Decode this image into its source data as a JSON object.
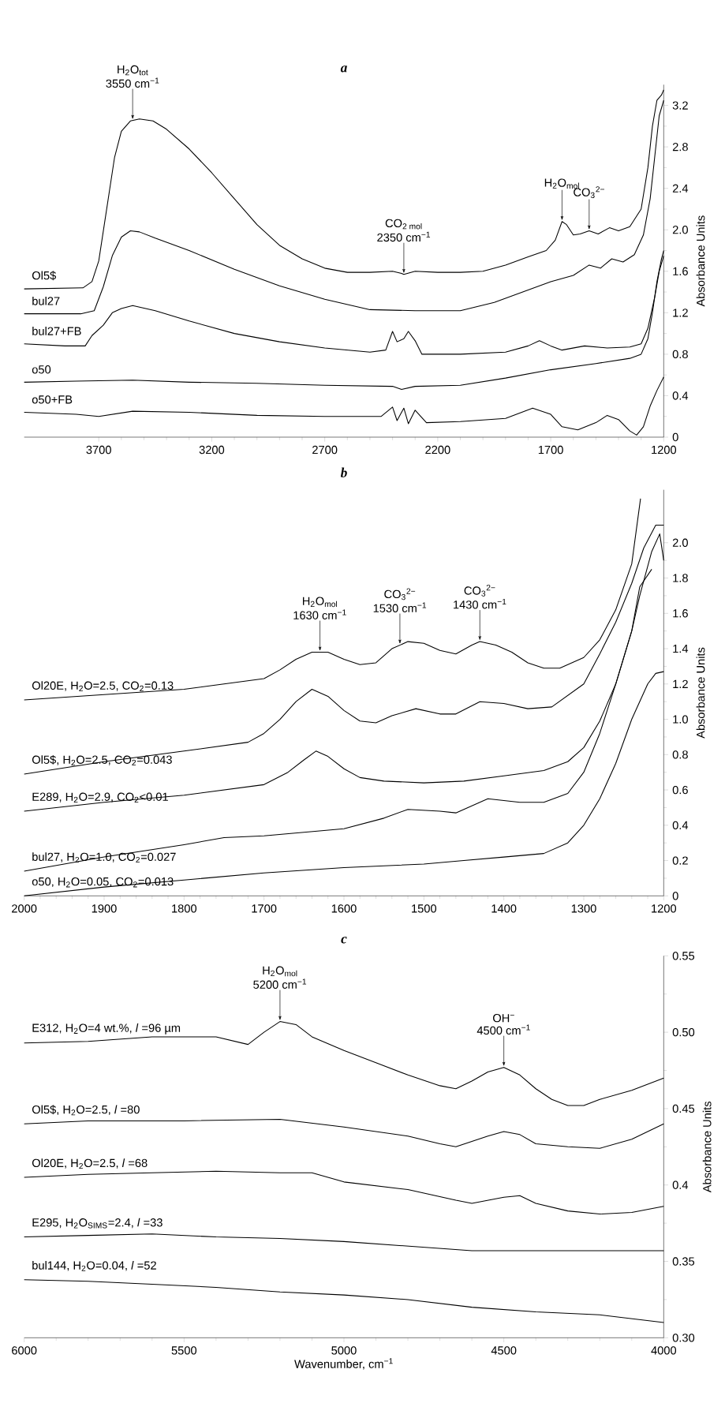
{
  "chart_data": [
    {
      "type": "line",
      "title": "a",
      "ylabel": "Absorbance Units",
      "xlim": [
        4030,
        1200
      ],
      "ylim": [
        0,
        3.4
      ],
      "xticks": [
        3700,
        3200,
        2700,
        2200,
        1700,
        1200
      ],
      "yticks": [
        0,
        0.4,
        0.8,
        1.2,
        1.6,
        {
          "value": 2.0,
          "label": "2.0"
        },
        2.4,
        2.8,
        3.2
      ],
      "series": [
        {
          "name": "Ol5$",
          "color": "#000000",
          "x": [
            4030,
            3770,
            3730,
            3700,
            3665,
            3630,
            3600,
            3560,
            3520,
            3460,
            3400,
            3300,
            3200,
            3100,
            3000,
            2900,
            2800,
            2700,
            2600,
            2500,
            2400,
            2360,
            2350,
            2300,
            2200,
            2100,
            2000,
            1900,
            1800,
            1720,
            1680,
            1650,
            1630,
            1600,
            1570,
            1530,
            1490,
            1440,
            1400,
            1350,
            1300,
            1270,
            1250,
            1230,
            1210,
            1200
          ],
          "values": [
            1.43,
            1.44,
            1.5,
            1.7,
            2.2,
            2.7,
            2.95,
            3.05,
            3.07,
            3.05,
            2.97,
            2.78,
            2.55,
            2.3,
            2.05,
            1.85,
            1.72,
            1.63,
            1.59,
            1.59,
            1.6,
            1.58,
            1.57,
            1.6,
            1.59,
            1.59,
            1.6,
            1.66,
            1.74,
            1.8,
            1.9,
            2.08,
            2.05,
            1.95,
            1.96,
            1.99,
            1.96,
            2.02,
            1.99,
            2.03,
            2.2,
            2.6,
            3.0,
            3.25,
            3.3,
            3.35
          ]
        },
        {
          "name": "bul27",
          "color": "#000000",
          "x": [
            4030,
            3780,
            3720,
            3680,
            3640,
            3600,
            3560,
            3520,
            3450,
            3300,
            3100,
            2900,
            2700,
            2500,
            2300,
            2100,
            1950,
            1800,
            1700,
            1600,
            1530,
            1480,
            1430,
            1380,
            1330,
            1290,
            1260,
            1240,
            1220,
            1200
          ],
          "values": [
            1.19,
            1.19,
            1.22,
            1.45,
            1.75,
            1.93,
            1.99,
            1.98,
            1.92,
            1.8,
            1.62,
            1.46,
            1.33,
            1.23,
            1.22,
            1.22,
            1.3,
            1.42,
            1.5,
            1.56,
            1.66,
            1.63,
            1.72,
            1.69,
            1.76,
            1.95,
            2.3,
            2.7,
            3.1,
            3.25
          ]
        },
        {
          "name": "bul27+FB",
          "color": "#000000",
          "x": [
            4030,
            3850,
            3760,
            3730,
            3680,
            3640,
            3600,
            3550,
            3450,
            3300,
            3100,
            2900,
            2700,
            2500,
            2430,
            2400,
            2380,
            2350,
            2330,
            2300,
            2270,
            2100,
            1900,
            1800,
            1750,
            1700,
            1650,
            1550,
            1450,
            1350,
            1300,
            1270,
            1240,
            1220,
            1200
          ],
          "values": [
            0.9,
            0.88,
            0.88,
            0.98,
            1.08,
            1.2,
            1.24,
            1.27,
            1.22,
            1.12,
            1.0,
            0.92,
            0.86,
            0.82,
            0.84,
            1.02,
            0.92,
            0.95,
            1.02,
            0.93,
            0.8,
            0.8,
            0.82,
            0.88,
            0.93,
            0.88,
            0.84,
            0.88,
            0.86,
            0.87,
            0.9,
            1.05,
            1.35,
            1.6,
            1.75
          ]
        },
        {
          "name": "o50",
          "color": "#000000",
          "x": [
            4030,
            3800,
            3550,
            3300,
            3000,
            2700,
            2400,
            2360,
            2300,
            2100,
            1900,
            1700,
            1500,
            1350,
            1300,
            1270,
            1250,
            1230,
            1210,
            1200
          ],
          "values": [
            0.53,
            0.54,
            0.55,
            0.53,
            0.52,
            0.5,
            0.49,
            0.46,
            0.49,
            0.5,
            0.57,
            0.65,
            0.71,
            0.76,
            0.8,
            0.95,
            1.2,
            1.5,
            1.72,
            1.8
          ]
        },
        {
          "name": "o50+FB",
          "color": "#000000",
          "x": [
            4030,
            3800,
            3700,
            3550,
            3300,
            3000,
            2700,
            2450,
            2400,
            2380,
            2350,
            2330,
            2300,
            2250,
            2100,
            1900,
            1780,
            1700,
            1650,
            1580,
            1500,
            1450,
            1400,
            1350,
            1320,
            1290,
            1260,
            1230,
            1200
          ],
          "values": [
            0.24,
            0.22,
            0.2,
            0.25,
            0.24,
            0.21,
            0.2,
            0.2,
            0.29,
            0.16,
            0.28,
            0.13,
            0.26,
            0.14,
            0.15,
            0.18,
            0.28,
            0.22,
            0.1,
            0.07,
            0.14,
            0.21,
            0.17,
            0.06,
            0.02,
            0.1,
            0.3,
            0.45,
            0.58
          ]
        }
      ],
      "annotations": [
        {
          "text": "3550 cm$^{−1}$",
          "x": 3550,
          "y": 3.055
        },
        "H$_{2}$O$_{tot}$",
        {
          "text": "2350 cm$^{−1}$",
          "x": 2350,
          "y": 1.57
        },
        "CO$_{2 mol}$",
        {
          "text": "H$_{2}$O$_{mol}$",
          "x": 1650,
          "y": 2.08
        },
        {
          "text": "CO$_{3}$$^{2−}$",
          "x": 1530,
          "y": 1.99
        }
      ]
    },
    {
      "type": "line",
      "title": "b",
      "ylabel": "Absorbance Units",
      "xlim": [
        2000,
        1200
      ],
      "ylim": [
        0,
        2.3
      ],
      "xticks": [
        2000,
        1900,
        1800,
        1700,
        1600,
        1500,
        1400,
        1300,
        1200
      ],
      "yticks": [
        0,
        0.2,
        0.4,
        0.6,
        0.8,
        {
          "value": 1.0,
          "label": "1.0"
        },
        1.2,
        1.4,
        1.6,
        1.8,
        {
          "value": 2.0,
          "label": "2.0"
        }
      ],
      "series": [
        {
          "name": "Ol20E, H$_{2}$O=2.5, CO$_{2}$=0.13",
          "color": "#000000",
          "x": [
            2000,
            1900,
            1800,
            1750,
            1700,
            1680,
            1660,
            1640,
            1620,
            1600,
            1580,
            1560,
            1540,
            1520,
            1500,
            1480,
            1460,
            1440,
            1430,
            1410,
            1390,
            1370,
            1350,
            1330,
            1300,
            1280,
            1260,
            1240,
            1229
          ],
          "values": [
            1.11,
            1.14,
            1.17,
            1.2,
            1.23,
            1.28,
            1.34,
            1.38,
            1.38,
            1.34,
            1.31,
            1.32,
            1.4,
            1.44,
            1.43,
            1.39,
            1.37,
            1.42,
            1.44,
            1.42,
            1.38,
            1.32,
            1.29,
            1.29,
            1.35,
            1.45,
            1.62,
            1.88,
            2.25
          ]
        },
        {
          "name": "Ol5$, H$_{2}$O=2.5, CO$_{2}$=0.043",
          "color": "#000000",
          "x": [
            2000,
            1900,
            1800,
            1720,
            1700,
            1680,
            1660,
            1640,
            1620,
            1600,
            1580,
            1560,
            1540,
            1510,
            1480,
            1460,
            1430,
            1400,
            1370,
            1340,
            1300,
            1280,
            1260,
            1240,
            1225,
            1210,
            1200
          ],
          "values": [
            0.69,
            0.76,
            0.82,
            0.87,
            0.92,
            1.0,
            1.1,
            1.17,
            1.13,
            1.05,
            0.99,
            0.98,
            1.02,
            1.06,
            1.03,
            1.03,
            1.1,
            1.09,
            1.06,
            1.07,
            1.2,
            1.37,
            1.55,
            1.77,
            1.97,
            2.1,
            2.1
          ]
        },
        {
          "name": "E289, H$_{2}$O=2.9, CO$_{2}$<0.01",
          "color": "#000000",
          "x": [
            2000,
            1900,
            1800,
            1700,
            1670,
            1650,
            1635,
            1620,
            1600,
            1580,
            1550,
            1500,
            1450,
            1400,
            1350,
            1320,
            1300,
            1280,
            1260,
            1240,
            1230,
            1215,
            1205,
            1200
          ],
          "values": [
            0.48,
            0.53,
            0.57,
            0.63,
            0.7,
            0.77,
            0.82,
            0.79,
            0.72,
            0.67,
            0.65,
            0.64,
            0.65,
            0.68,
            0.71,
            0.76,
            0.84,
            0.99,
            1.2,
            1.5,
            1.7,
            1.95,
            2.05,
            1.9
          ]
        },
        {
          "name": "bul27, H$_{2}$O=1.0, CO$_{2}$=0.027",
          "color": "#000000",
          "x": [
            2000,
            1900,
            1800,
            1750,
            1700,
            1600,
            1550,
            1520,
            1480,
            1460,
            1420,
            1380,
            1350,
            1320,
            1300,
            1280,
            1260,
            1240,
            1230,
            1215
          ],
          "values": [
            0.14,
            0.22,
            0.29,
            0.33,
            0.34,
            0.38,
            0.44,
            0.49,
            0.48,
            0.47,
            0.55,
            0.53,
            0.53,
            0.58,
            0.7,
            0.92,
            1.2,
            1.5,
            1.75,
            1.85
          ]
        },
        {
          "name": "o50, H$_{2}$O=0.05, CO$_{2}$=0.013",
          "color": "#000000",
          "x": [
            2000,
            1900,
            1800,
            1700,
            1600,
            1500,
            1450,
            1400,
            1350,
            1320,
            1300,
            1280,
            1260,
            1240,
            1220,
            1210,
            1200
          ],
          "values": [
            0.0,
            0.05,
            0.09,
            0.13,
            0.16,
            0.18,
            0.2,
            0.22,
            0.24,
            0.3,
            0.4,
            0.55,
            0.75,
            1.0,
            1.2,
            1.26,
            1.27
          ]
        }
      ],
      "annotations": [
        {
          "text": "1630 cm$^{−1}$",
          "x": 1630,
          "y": 1.38
        },
        "H$_{2}$O$_{mol}$",
        {
          "text": "1530 cm$^{−1}$",
          "x": 1530,
          "y": 1.42
        },
        "CO$_{3}$$^{2−}$",
        {
          "text": "1430 cm$^{−1}$",
          "x": 1430,
          "y": 1.44
        },
        "CO$_{3}$$^{2−}$"
      ]
    },
    {
      "type": "line",
      "title": "c",
      "xlabel": "Wavenumber, cm$^{−1}$",
      "ylabel": "Absorbance Units",
      "xlim": [
        6000,
        4000
      ],
      "ylim": [
        0.3,
        0.55
      ],
      "xticks": [
        6000,
        5500,
        5000,
        4500,
        4000
      ],
      "yticks": [
        {
          "value": 0.3,
          "label": "0.30"
        },
        0.35,
        0.4,
        0.45,
        {
          "value": 0.5,
          "label": "0.50"
        },
        0.55
      ],
      "series": [
        {
          "name": "E312, H$_{2}$O=4 wt.%, *l* =96 µm",
          "color": "#000000",
          "x": [
            6000,
            5800,
            5600,
            5400,
            5300,
            5250,
            5200,
            5150,
            5100,
            5000,
            4900,
            4800,
            4700,
            4650,
            4600,
            4550,
            4500,
            4450,
            4400,
            4350,
            4300,
            4250,
            4200,
            4100,
            4000
          ],
          "values": [
            0.493,
            0.494,
            0.497,
            0.497,
            0.492,
            0.5,
            0.507,
            0.505,
            0.497,
            0.488,
            0.48,
            0.472,
            0.465,
            0.463,
            0.468,
            0.474,
            0.477,
            0.472,
            0.463,
            0.456,
            0.452,
            0.452,
            0.456,
            0.462,
            0.47
          ]
        },
        {
          "name": "Ol5$, H$_{2}$O=2.5, *l* =80",
          "color": "#000000",
          "x": [
            6000,
            5800,
            5500,
            5200,
            5000,
            4800,
            4700,
            4650,
            4550,
            4500,
            4450,
            4400,
            4300,
            4200,
            4100,
            4000
          ],
          "values": [
            0.44,
            0.442,
            0.442,
            0.443,
            0.438,
            0.432,
            0.427,
            0.425,
            0.432,
            0.435,
            0.433,
            0.427,
            0.425,
            0.424,
            0.43,
            0.44
          ]
        },
        {
          "name": "Ol20E, H$_{2}$O=2.5, *l* =68",
          "color": "#000000",
          "x": [
            6000,
            5800,
            5600,
            5400,
            5200,
            5100,
            5000,
            4800,
            4650,
            4600,
            4500,
            4450,
            4400,
            4300,
            4200,
            4100,
            4000
          ],
          "values": [
            0.405,
            0.407,
            0.408,
            0.409,
            0.408,
            0.408,
            0.402,
            0.397,
            0.39,
            0.388,
            0.392,
            0.393,
            0.388,
            0.383,
            0.381,
            0.382,
            0.386
          ]
        },
        {
          "name": "E295, H$_{2}$O$_{SIMS}$=2.4, *l* =33",
          "color": "#000000",
          "x": [
            6000,
            5800,
            5600,
            5400,
            5200,
            5000,
            4800,
            4600,
            4400,
            4200,
            4000
          ],
          "values": [
            0.366,
            0.367,
            0.368,
            0.366,
            0.365,
            0.363,
            0.36,
            0.357,
            0.357,
            0.357,
            0.357
          ]
        },
        {
          "name": "bul144, H$_{2}$O=0.04, *l* =52",
          "color": "#000000",
          "x": [
            6000,
            5800,
            5600,
            5400,
            5200,
            5000,
            4800,
            4600,
            4400,
            4200,
            4000
          ],
          "values": [
            0.338,
            0.337,
            0.335,
            0.333,
            0.33,
            0.328,
            0.325,
            0.32,
            0.317,
            0.315,
            0.31
          ]
        }
      ],
      "annotations": [
        {
          "text": "5200 cm$^{−1}$",
          "x": 5200,
          "y": 0.507
        },
        "H$_{2}$O$_{mol}$",
        {
          "text": "4500 cm$^{−1}$",
          "x": 4500,
          "y": 0.477
        },
        "OH$^{−}$"
      ]
    }
  ]
}
